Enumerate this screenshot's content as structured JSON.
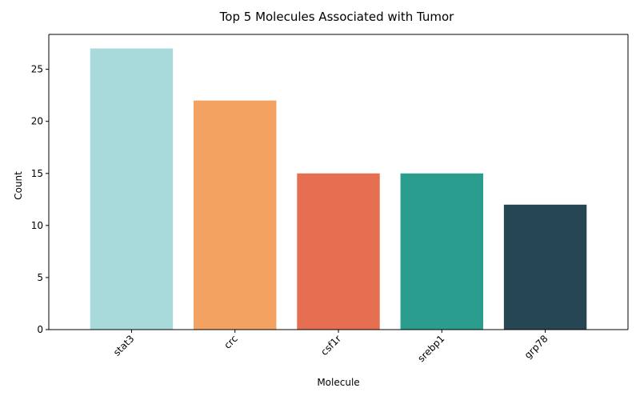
{
  "chart_data": {
    "type": "bar",
    "title": "Top 5 Molecules Associated with Tumor",
    "xlabel": "Molecule",
    "ylabel": "Count",
    "categories": [
      "stat3",
      "crc",
      "csf1r",
      "srebp1",
      "grp78"
    ],
    "values": [
      27,
      22,
      15,
      15,
      12
    ],
    "colors": [
      "#a8dadc",
      "#f4a261",
      "#e76f51",
      "#2a9d8f",
      "#264653"
    ],
    "ylim": [
      0,
      28.35
    ],
    "yticks": [
      0,
      5,
      10,
      15,
      20,
      25
    ],
    "grid": false,
    "legend": "none"
  }
}
